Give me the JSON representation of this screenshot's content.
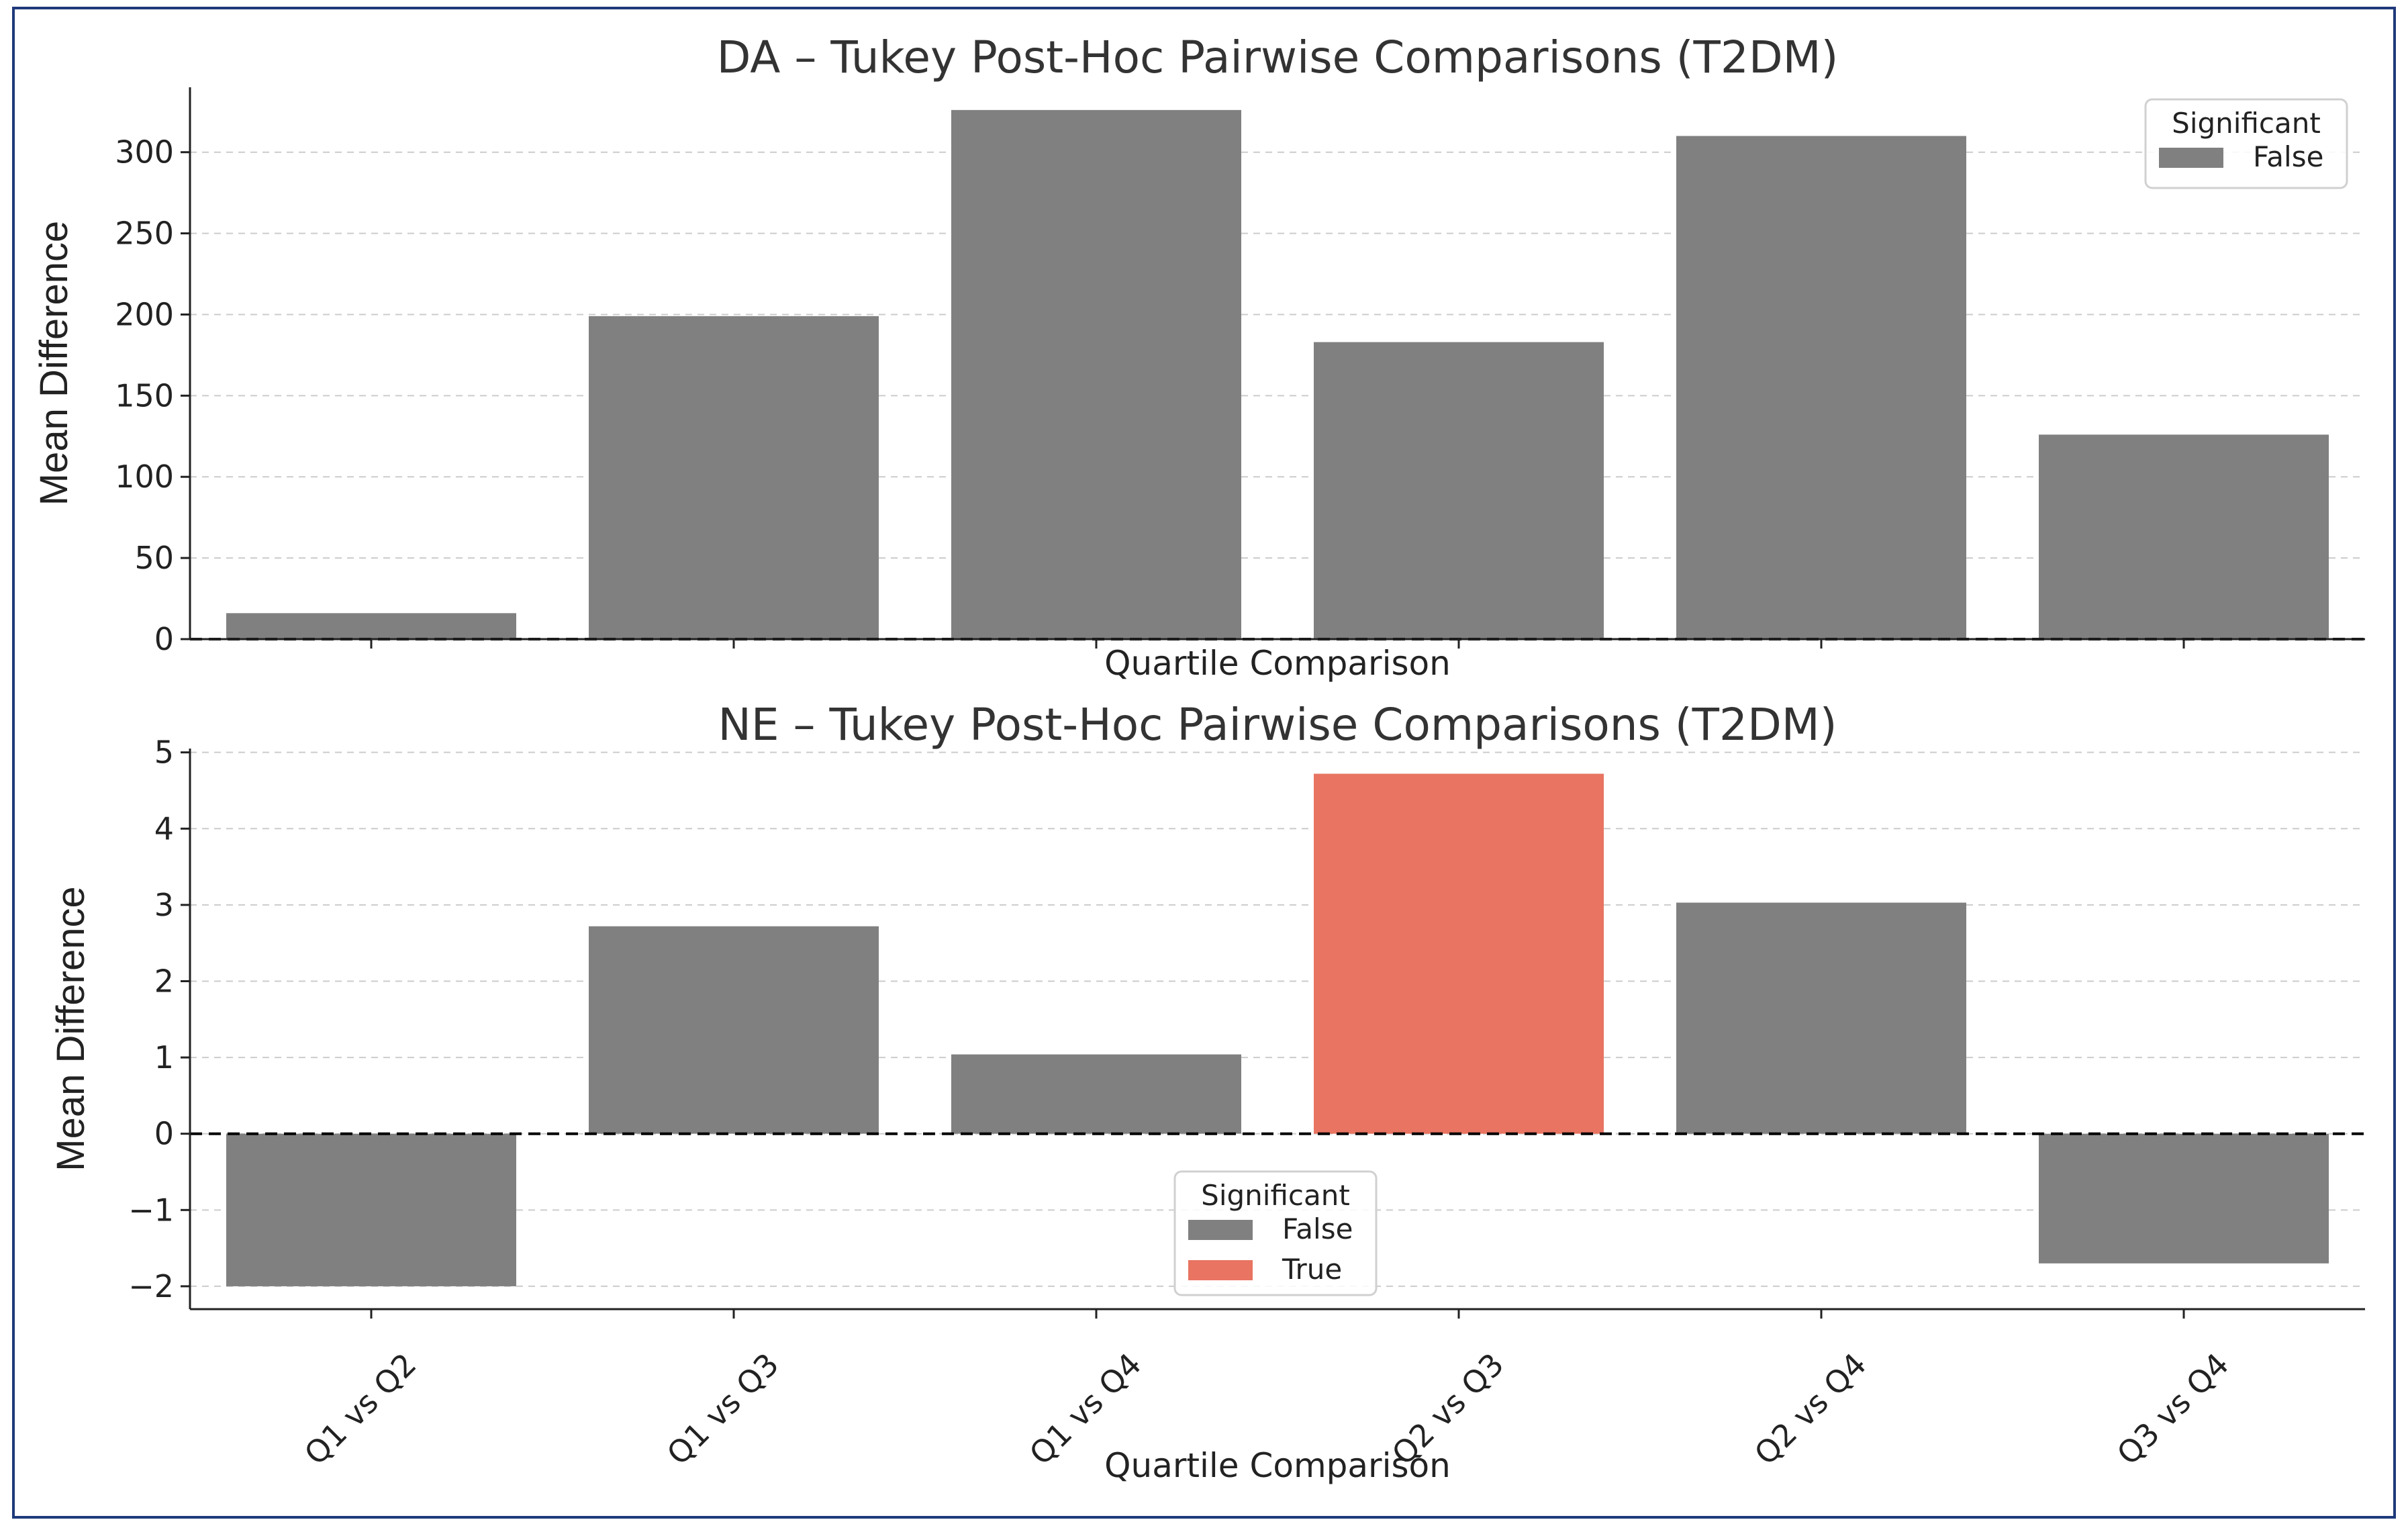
{
  "chart_data": [
    {
      "type": "bar",
      "title": "DA – Tukey Post-Hoc Pairwise Comparisons (T2DM)",
      "xlabel": "Quartile Comparison",
      "ylabel": "Mean Difference",
      "categories": [
        "Q1 vs Q2",
        "Q1 vs Q3",
        "Q1 vs Q4",
        "Q2 vs Q3",
        "Q2 vs Q4",
        "Q3 vs Q4"
      ],
      "values": [
        16,
        199,
        326,
        183,
        310,
        126
      ],
      "significant": [
        false,
        false,
        false,
        false,
        false,
        false
      ],
      "ylim": [
        0,
        340
      ],
      "yticks": [
        0,
        50,
        100,
        150,
        200,
        250,
        300
      ],
      "show_xtick_labels": false,
      "grid": "y-dashed",
      "reference_line": 0,
      "legend": {
        "title": "Significant",
        "position": "top-right",
        "entries": [
          {
            "label": "False",
            "color": "#808080"
          }
        ]
      }
    },
    {
      "type": "bar",
      "title": "NE – Tukey Post-Hoc Pairwise Comparisons (T2DM)",
      "xlabel": "Quartile Comparison",
      "ylabel": "Mean Difference",
      "categories": [
        "Q1 vs Q2",
        "Q1 vs Q3",
        "Q1 vs Q4",
        "Q2 vs Q3",
        "Q2 vs Q4",
        "Q3 vs Q4"
      ],
      "values": [
        -2.0,
        2.72,
        1.04,
        4.72,
        3.03,
        -1.7
      ],
      "significant": [
        false,
        false,
        false,
        true,
        false,
        false
      ],
      "ylim": [
        -2.3,
        5.05
      ],
      "yticks": [
        -2,
        -1,
        0,
        1,
        2,
        3,
        4,
        5
      ],
      "show_xtick_labels": true,
      "grid": "y-dashed",
      "reference_line": 0,
      "legend": {
        "title": "Significant",
        "position": "lower-center",
        "entries": [
          {
            "label": "False",
            "color": "#808080"
          },
          {
            "label": "True",
            "color": "#e87461"
          }
        ]
      }
    }
  ],
  "colors": {
    "false": "#808080",
    "true": "#e87461",
    "grid": "#cccccc",
    "axis": "#222222"
  }
}
